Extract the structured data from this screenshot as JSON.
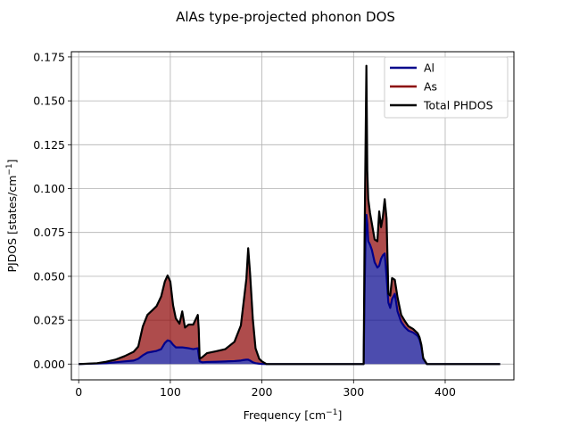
{
  "chart_data": {
    "type": "area",
    "title": "AlAs type-projected phonon DOS",
    "xlabel": "Frequency [cm",
    "xlabel_sup": "−1",
    "xlabel_end": "]",
    "ylabel": "PJDOS [states/cm",
    "ylabel_sup": "−1",
    "ylabel_end": "]",
    "xlim": [
      -8,
      475
    ],
    "ylim": [
      -0.009,
      0.178
    ],
    "xticks": [
      0,
      100,
      200,
      300,
      400
    ],
    "xtick_labels": [
      "0",
      "100",
      "200",
      "300",
      "400"
    ],
    "yticks": [
      0.0,
      0.025,
      0.05,
      0.075,
      0.1,
      0.125,
      0.15,
      0.175
    ],
    "ytick_labels": [
      "0.000",
      "0.025",
      "0.050",
      "0.075",
      "0.100",
      "0.125",
      "0.150",
      "0.175"
    ],
    "grid": true,
    "legend_position": "top-right",
    "x": [
      0,
      20,
      30,
      40,
      50,
      60,
      65,
      70,
      75,
      80,
      85,
      90,
      94,
      97,
      100,
      103,
      106,
      110,
      113,
      116,
      120,
      125,
      130,
      131,
      132,
      135,
      140,
      150,
      160,
      170,
      177,
      180,
      183,
      185,
      187,
      190,
      193,
      197,
      200,
      205,
      250,
      300,
      311,
      312,
      313,
      314,
      315,
      316,
      318,
      320,
      323,
      326,
      328,
      330,
      332,
      334,
      336,
      338,
      340,
      342,
      345,
      348,
      352,
      356,
      360,
      365,
      370,
      372,
      374,
      376,
      380,
      400,
      460
    ],
    "series": [
      {
        "name": "Al",
        "color": "#00008b",
        "values": [
          0,
          0.0003,
          0.0005,
          0.001,
          0.0015,
          0.002,
          0.003,
          0.005,
          0.0065,
          0.007,
          0.0075,
          0.0085,
          0.012,
          0.0135,
          0.013,
          0.011,
          0.0095,
          0.0095,
          0.0095,
          0.0093,
          0.009,
          0.0085,
          0.009,
          0.005,
          0.0015,
          0.001,
          0.0012,
          0.0013,
          0.0015,
          0.0017,
          0.002,
          0.0023,
          0.0025,
          0.0025,
          0.002,
          0.001,
          0.0005,
          0.0002,
          0.0001,
          0,
          0,
          0,
          0,
          0.04,
          0.07,
          0.085,
          0.08,
          0.07,
          0.068,
          0.065,
          0.058,
          0.055,
          0.056,
          0.06,
          0.062,
          0.063,
          0.05,
          0.035,
          0.032,
          0.037,
          0.04,
          0.03,
          0.024,
          0.021,
          0.019,
          0.018,
          0.016,
          0.014,
          0.01,
          0.003,
          0,
          0,
          0
        ]
      },
      {
        "name": "As",
        "color": "#8b0000",
        "values": [
          0,
          0.0002,
          0.0008,
          0.0015,
          0.003,
          0.005,
          0.007,
          0.0165,
          0.0215,
          0.0235,
          0.0255,
          0.03,
          0.035,
          0.037,
          0.034,
          0.0225,
          0.0165,
          0.0135,
          0.0205,
          0.0115,
          0.0135,
          0.014,
          0.019,
          0.015,
          0.0015,
          0.003,
          0.005,
          0.006,
          0.007,
          0.011,
          0.02,
          0.033,
          0.046,
          0.0635,
          0.05,
          0.025,
          0.0085,
          0.0028,
          0.0014,
          0,
          0,
          0,
          0,
          0.03,
          0.05,
          0.085,
          0.03,
          0.024,
          0.018,
          0.015,
          0.013,
          0.015,
          0.031,
          0.018,
          0.022,
          0.031,
          0.033,
          0.005,
          0.007,
          0.012,
          0.008,
          0.008,
          0.004,
          0.0035,
          0.0025,
          0.002,
          0.0015,
          0.0012,
          0.001,
          0.0005,
          0,
          0,
          0
        ]
      },
      {
        "name": "Total PHDOS",
        "color": "#000000",
        "values": [
          0,
          0.0005,
          0.0013,
          0.0025,
          0.0045,
          0.007,
          0.01,
          0.0215,
          0.028,
          0.0305,
          0.033,
          0.0385,
          0.047,
          0.0505,
          0.047,
          0.0335,
          0.026,
          0.023,
          0.03,
          0.0208,
          0.0225,
          0.0225,
          0.028,
          0.02,
          0.003,
          0.004,
          0.0062,
          0.0073,
          0.0085,
          0.0127,
          0.022,
          0.0353,
          0.0485,
          0.066,
          0.052,
          0.026,
          0.009,
          0.003,
          0.0015,
          0,
          0,
          0,
          0,
          0.07,
          0.12,
          0.17,
          0.11,
          0.094,
          0.086,
          0.08,
          0.071,
          0.07,
          0.087,
          0.078,
          0.084,
          0.094,
          0.083,
          0.04,
          0.039,
          0.049,
          0.048,
          0.038,
          0.028,
          0.0245,
          0.0215,
          0.02,
          0.0175,
          0.0152,
          0.011,
          0.0035,
          0,
          0,
          0
        ]
      }
    ]
  }
}
